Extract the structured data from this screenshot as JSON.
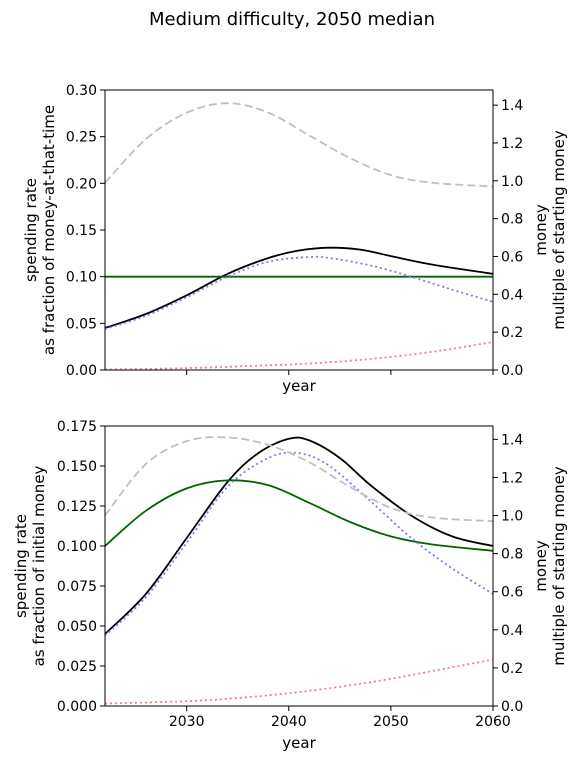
{
  "title": "Medium difficulty, 2050 median",
  "colors": {
    "black_series": "#000000",
    "green_series": "#006400",
    "blue_series": "#7b7bea",
    "red_series": "#f08080",
    "grey_series": "#c0c0c0"
  },
  "chart_data": [
    {
      "type": "line",
      "xlabel": "year",
      "ylabel": "spending rate\nas fraction of money-at-that-time",
      "y2label": "money\nmultiple of starting money",
      "xlim": [
        2022,
        2060
      ],
      "ylim": [
        0,
        0.3
      ],
      "y2lim": [
        0,
        1.48
      ],
      "xticks": [
        2030,
        2040,
        2050,
        2060
      ],
      "xtick_labels_shown": false,
      "yticks": [
        "0.00",
        "0.05",
        "0.10",
        "0.15",
        "0.20",
        "0.25",
        "0.30"
      ],
      "y2ticks": [
        "0.0",
        "0.2",
        "0.4",
        "0.6",
        "0.8",
        "1.0",
        "1.2",
        "1.4"
      ],
      "series": [
        {
          "color_key": "black_series",
          "style": "solid",
          "axis": "left",
          "x": [
            2022,
            2026,
            2030,
            2034,
            2038,
            2041,
            2044,
            2047,
            2050,
            2054,
            2060
          ],
          "y": [
            0.045,
            0.06,
            0.08,
            0.103,
            0.12,
            0.128,
            0.131,
            0.129,
            0.122,
            0.113,
            0.103
          ]
        },
        {
          "color_key": "green_series",
          "style": "solid",
          "axis": "left",
          "x": [
            2022,
            2060
          ],
          "y": [
            0.1,
            0.1
          ]
        },
        {
          "color_key": "blue_series",
          "style": "dotted",
          "axis": "left",
          "x": [
            2022,
            2026,
            2030,
            2034,
            2038,
            2042,
            2044,
            2048,
            2052,
            2056,
            2060
          ],
          "y": [
            0.044,
            0.058,
            0.078,
            0.1,
            0.116,
            0.121,
            0.12,
            0.112,
            0.1,
            0.086,
            0.073
          ]
        },
        {
          "color_key": "red_series",
          "style": "dotted",
          "axis": "left",
          "x": [
            2022,
            2030,
            2038,
            2042,
            2046,
            2050,
            2055,
            2060
          ],
          "y": [
            0.0005,
            0.002,
            0.005,
            0.007,
            0.01,
            0.014,
            0.021,
            0.03
          ]
        },
        {
          "color_key": "grey_series",
          "style": "dashed",
          "axis": "right",
          "x": [
            2022,
            2026,
            2030,
            2034,
            2038,
            2042,
            2046,
            2050,
            2054,
            2060
          ],
          "y": [
            0.99,
            1.22,
            1.36,
            1.41,
            1.36,
            1.24,
            1.12,
            1.03,
            0.99,
            0.97
          ]
        }
      ]
    },
    {
      "type": "line",
      "xlabel": "year",
      "ylabel": "spending rate\nas fraction of initial money",
      "y2label": "money\nmultiple of starting money",
      "xlim": [
        2022,
        2060
      ],
      "ylim": [
        0,
        0.175
      ],
      "y2lim": [
        0,
        1.47
      ],
      "xticks": [
        2030,
        2040,
        2050,
        2060
      ],
      "xtick_labels_shown": true,
      "xtick_labels": [
        "2030",
        "2040",
        "2050",
        "2060"
      ],
      "yticks": [
        "0.000",
        "0.025",
        "0.050",
        "0.075",
        "0.100",
        "0.125",
        "0.150",
        "0.175"
      ],
      "y2ticks": [
        "0.0",
        "0.2",
        "0.4",
        "0.6",
        "0.8",
        "1.0",
        "1.2",
        "1.4"
      ],
      "series": [
        {
          "color_key": "black_series",
          "style": "solid",
          "axis": "left",
          "x": [
            2022,
            2026,
            2030,
            2034,
            2037,
            2040,
            2042,
            2045,
            2048,
            2052,
            2056,
            2060
          ],
          "y": [
            0.045,
            0.07,
            0.105,
            0.14,
            0.158,
            0.167,
            0.166,
            0.155,
            0.138,
            0.119,
            0.106,
            0.1
          ]
        },
        {
          "color_key": "green_series",
          "style": "solid",
          "axis": "left",
          "x": [
            2022,
            2026,
            2030,
            2034,
            2038,
            2042,
            2046,
            2050,
            2054,
            2060
          ],
          "y": [
            0.1,
            0.122,
            0.136,
            0.141,
            0.138,
            0.127,
            0.115,
            0.106,
            0.101,
            0.097
          ]
        },
        {
          "color_key": "blue_series",
          "style": "dotted",
          "axis": "left",
          "x": [
            2022,
            2026,
            2030,
            2034,
            2038,
            2041,
            2044,
            2048,
            2052,
            2056,
            2060
          ],
          "y": [
            0.044,
            0.068,
            0.102,
            0.137,
            0.155,
            0.158,
            0.15,
            0.128,
            0.105,
            0.086,
            0.07
          ]
        },
        {
          "color_key": "red_series",
          "style": "dotted",
          "axis": "left",
          "x": [
            2022,
            2030,
            2035,
            2040,
            2045,
            2050,
            2055,
            2060
          ],
          "y": [
            0.0015,
            0.003,
            0.005,
            0.008,
            0.012,
            0.017,
            0.023,
            0.029
          ]
        },
        {
          "color_key": "grey_series",
          "style": "dashed",
          "axis": "right",
          "x": [
            2022,
            2026,
            2030,
            2034,
            2038,
            2042,
            2046,
            2050,
            2054,
            2060
          ],
          "y": [
            1.0,
            1.27,
            1.39,
            1.41,
            1.37,
            1.28,
            1.15,
            1.04,
            0.99,
            0.97
          ]
        }
      ]
    }
  ]
}
